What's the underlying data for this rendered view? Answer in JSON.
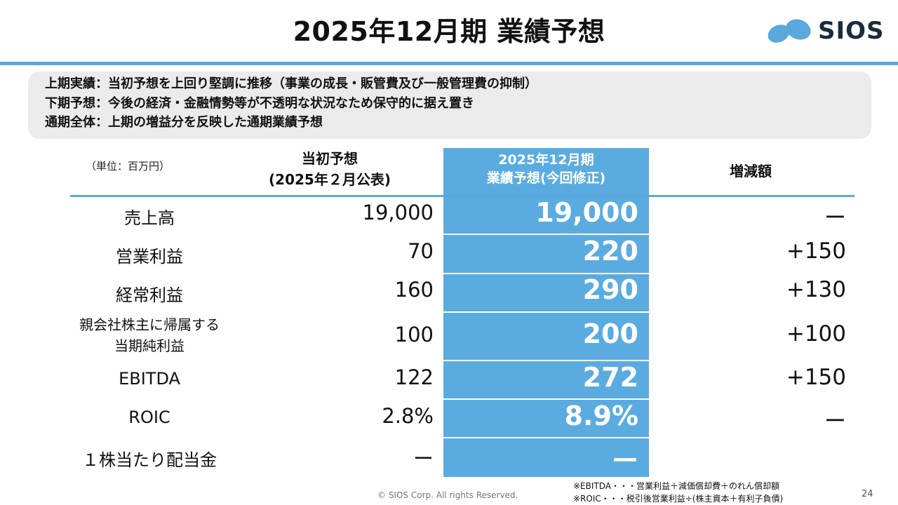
{
  "title": "2025年12月期 業績予想",
  "logo": {
    "text": "SIOS",
    "color": "#5aa8dc"
  },
  "summary": [
    "上期実績：当初予想を上回り堅調に推移（事業の成長・販管費及び一般管理費の抑制）",
    "下期予想：今後の経済・金融情勢等が不透明な状況なため保守的に据え置き",
    "通期全体：上期の増益分を反映した通期業績予想"
  ],
  "table": {
    "unit": "（単位：百万円）",
    "col_initial": [
      "当初予想",
      "(2025年２月公表)"
    ],
    "col_revised": [
      "2025年12月期",
      "業績予想(今回修正)"
    ],
    "col_change": "増減額",
    "rows": [
      {
        "label": "売上高",
        "initial": "19,000",
        "revised": "19,000",
        "change": "ー"
      },
      {
        "label": "営業利益",
        "initial": "70",
        "revised": "220",
        "change": "+150"
      },
      {
        "label": "経常利益",
        "initial": "160",
        "revised": "290",
        "change": "+130"
      },
      {
        "label": [
          "親会社株主に帰属する",
          "当期純利益"
        ],
        "initial": "100",
        "revised": "200",
        "change": "+100"
      },
      {
        "label": "EBITDA",
        "initial": "122",
        "revised": "272",
        "change": "+150"
      },
      {
        "label": "ROIC",
        "initial": "2.8%",
        "revised": "8.9%",
        "change": "ー"
      },
      {
        "label": "１株当たり配当金",
        "initial": "ー",
        "revised": "ー",
        "change": ""
      }
    ]
  },
  "footer": {
    "copyright": "© SIOS Corp. All rights Reserved.",
    "notes": [
      "※EBITDA・・・営業利益＋減価償却費＋のれん償却額",
      "※ROIC・・・税引後営業利益÷(株主資本＋有利子負債)"
    ],
    "page": "24"
  },
  "colors": {
    "accent": "#5aa8dc",
    "highlight": "#5aace0",
    "summary_bg": "#ebebeb"
  }
}
